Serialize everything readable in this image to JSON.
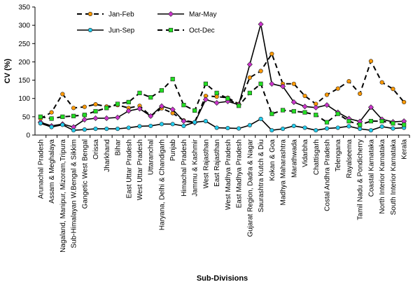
{
  "chart_data": {
    "type": "line",
    "title": "",
    "xlabel": "Sub-Divisions",
    "ylabel": "CV (%)",
    "ylim": [
      0,
      350
    ],
    "yticks": [
      0,
      50,
      100,
      150,
      200,
      250,
      300,
      350
    ],
    "grid": false,
    "legend_position": "top",
    "categories": [
      "Arunachal Pradesh",
      "Assam & Meghalaya",
      "Nagaland, Manipur, Mizoram,Tripura",
      "Sub-Himalayan W.Bengal & Sikkim",
      "Gangetic West Bengal",
      "Orissa",
      "Jharkhand",
      "Bihar",
      "East Uttar Pradesh",
      "West Uttar Pradesh",
      "Uttaranchal",
      "Haryana, Delhi & Chandigarh",
      "Punjab",
      "Himachal Pradesh",
      "Jammu & Kashmir",
      "West Rajasthan",
      "East Rajasthan",
      "West Madhya Pradesh",
      "East Madhya Pradesh",
      "Gujarat Region, Dadra & Nagar",
      "Saurashtra Kutch & Diu",
      "Kokan & Goa",
      "Madhya Maharashtra",
      "Marathwada",
      "Vidarbha",
      "Chattisgarh",
      "Costal Andhra Pradesh",
      "Telengana",
      "Rayalseema",
      "Tamil Nadu & Pondicherry",
      "Coastal Karnataka",
      "North Interior Karnataka",
      "South Interior Karnataka",
      "Kerala"
    ],
    "series": [
      {
        "name": "Jan-Feb",
        "color": "#ff9900",
        "line_color": "#000000",
        "line_style": "dashed",
        "marker": "circle",
        "values": [
          45,
          62,
          112,
          74,
          77,
          84,
          78,
          82,
          74,
          80,
          52,
          73,
          60,
          40,
          35,
          107,
          105,
          102,
          85,
          157,
          175,
          222,
          140,
          140,
          107,
          85,
          110,
          127,
          147,
          113,
          202,
          144,
          126,
          90
        ]
      },
      {
        "name": "Mar-May",
        "color": "#cc33cc",
        "line_color": "#000000",
        "line_style": "solid",
        "marker": "diamond",
        "values": [
          35,
          25,
          30,
          22,
          42,
          46,
          46,
          48,
          66,
          72,
          52,
          79,
          70,
          38,
          34,
          97,
          88,
          92,
          83,
          193,
          303,
          140,
          133,
          90,
          78,
          75,
          82,
          62,
          45,
          37,
          76,
          43,
          36,
          38
        ]
      },
      {
        "name": "Jun-Sep",
        "color": "#22ccee",
        "line_color": "#000000",
        "line_style": "solid",
        "marker": "circle",
        "values": [
          32,
          22,
          28,
          13,
          15,
          17,
          17,
          17,
          20,
          24,
          25,
          30,
          30,
          25,
          35,
          38,
          20,
          19,
          18,
          27,
          44,
          13,
          17,
          25,
          20,
          13,
          18,
          20,
          24,
          17,
          13,
          23,
          18,
          20
        ]
      },
      {
        "name": "Oct-Dec",
        "color": "#22dd22",
        "line_color": "#000000",
        "line_style": "dashed",
        "marker": "square",
        "values": [
          50,
          45,
          50,
          52,
          55,
          65,
          74,
          85,
          90,
          115,
          103,
          122,
          153,
          82,
          67,
          140,
          115,
          100,
          80,
          115,
          140,
          58,
          68,
          65,
          62,
          55,
          35,
          58,
          38,
          28,
          38,
          38,
          32,
          28
        ]
      }
    ]
  }
}
